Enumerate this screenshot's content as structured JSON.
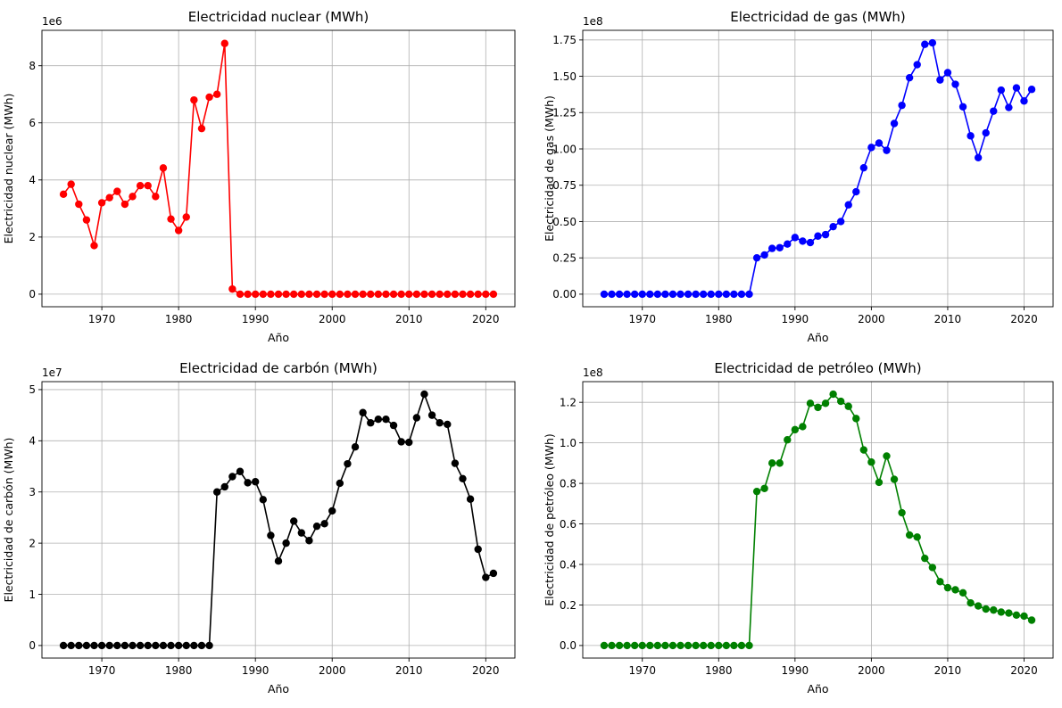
{
  "chart_data": [
    {
      "type": "line",
      "title": "Electricidad nuclear (MWh)",
      "xlabel": "Año",
      "ylabel": "Electricidad nuclear (MWh)",
      "y_offset_text": "1e6",
      "color": "#ff0000",
      "marker": "circle",
      "grid": true,
      "legend": "none",
      "xlim": [
        1962.2,
        2023.8
      ],
      "ylim": [
        -440000,
        9240000
      ],
      "x_ticks": [
        1970,
        1980,
        1990,
        2000,
        2010,
        2020
      ],
      "y_ticks": [
        0,
        2000000,
        4000000,
        6000000,
        8000000
      ],
      "y_tick_labels": [
        "0",
        "2",
        "4",
        "6",
        "8"
      ],
      "x": [
        1965,
        1966,
        1967,
        1968,
        1969,
        1970,
        1971,
        1972,
        1973,
        1974,
        1975,
        1976,
        1977,
        1978,
        1979,
        1980,
        1981,
        1982,
        1983,
        1984,
        1985,
        1986,
        1987,
        1988,
        1989,
        1990,
        1991,
        1992,
        1993,
        1994,
        1995,
        1996,
        1997,
        1998,
        1999,
        2000,
        2001,
        2002,
        2003,
        2004,
        2005,
        2006,
        2007,
        2008,
        2009,
        2010,
        2011,
        2012,
        2013,
        2014,
        2015,
        2016,
        2017,
        2018,
        2019,
        2020,
        2021
      ],
      "values": [
        3500000,
        3850000,
        3150000,
        2600000,
        1700000,
        3200000,
        3380000,
        3600000,
        3150000,
        3420000,
        3800000,
        3800000,
        3420000,
        4420000,
        2630000,
        2230000,
        2700000,
        6800000,
        5800000,
        6900000,
        7000000,
        8780000,
        180000,
        0,
        0,
        0,
        0,
        0,
        0,
        0,
        0,
        0,
        0,
        0,
        0,
        0,
        0,
        0,
        0,
        0,
        0,
        0,
        0,
        0,
        0,
        0,
        0,
        0,
        0,
        0,
        0,
        0,
        0,
        0,
        0,
        0,
        0
      ]
    },
    {
      "type": "line",
      "title": "Electricidad de gas (MWh)",
      "xlabel": "Año",
      "ylabel": "Electricidad de gas (MWh)",
      "y_offset_text": "1e8",
      "color": "#0000ff",
      "marker": "circle",
      "grid": true,
      "legend": "none",
      "xlim": [
        1962.2,
        2023.8
      ],
      "ylim": [
        -8650000,
        181650000
      ],
      "x_ticks": [
        1970,
        1980,
        1990,
        2000,
        2010,
        2020
      ],
      "y_ticks": [
        0,
        25000000,
        50000000,
        75000000,
        100000000,
        125000000,
        150000000,
        175000000
      ],
      "y_tick_labels": [
        "0.00",
        "0.25",
        "0.50",
        "0.75",
        "1.00",
        "1.25",
        "1.50",
        "1.75"
      ],
      "x": [
        1965,
        1966,
        1967,
        1968,
        1969,
        1970,
        1971,
        1972,
        1973,
        1974,
        1975,
        1976,
        1977,
        1978,
        1979,
        1980,
        1981,
        1982,
        1983,
        1984,
        1985,
        1986,
        1987,
        1988,
        1989,
        1990,
        1991,
        1992,
        1993,
        1994,
        1995,
        1996,
        1997,
        1998,
        1999,
        2000,
        2001,
        2002,
        2003,
        2004,
        2005,
        2006,
        2007,
        2008,
        2009,
        2010,
        2011,
        2012,
        2013,
        2014,
        2015,
        2016,
        2017,
        2018,
        2019,
        2020,
        2021
      ],
      "values": [
        0,
        0,
        0,
        0,
        0,
        0,
        0,
        0,
        0,
        0,
        0,
        0,
        0,
        0,
        0,
        0,
        0,
        0,
        0,
        0,
        25000000,
        27000000,
        31500000,
        32000000,
        34500000,
        39000000,
        36500000,
        35500000,
        40000000,
        41000000,
        46500000,
        50000000,
        61500000,
        70500000,
        87000000,
        101000000,
        104000000,
        99000000,
        117500000,
        130000000,
        149000000,
        158000000,
        172000000,
        173000000,
        147500000,
        152500000,
        144500000,
        129000000,
        109000000,
        94000000,
        111000000,
        126000000,
        140500000,
        128500000,
        142000000,
        133000000,
        141000000
      ]
    },
    {
      "type": "line",
      "title": "Electricidad de carbón (MWh)",
      "xlabel": "Año",
      "ylabel": "Electricidad de carbón (MWh)",
      "y_offset_text": "1e7",
      "color": "#000000",
      "marker": "circle",
      "grid": true,
      "legend": "none",
      "xlim": [
        1962.2,
        2023.8
      ],
      "ylim": [
        -2455000,
        51555000
      ],
      "x_ticks": [
        1970,
        1980,
        1990,
        2000,
        2010,
        2020
      ],
      "y_ticks": [
        0,
        10000000,
        20000000,
        30000000,
        40000000,
        50000000
      ],
      "y_tick_labels": [
        "0",
        "1",
        "2",
        "3",
        "4",
        "5"
      ],
      "x": [
        1965,
        1966,
        1967,
        1968,
        1969,
        1970,
        1971,
        1972,
        1973,
        1974,
        1975,
        1976,
        1977,
        1978,
        1979,
        1980,
        1981,
        1982,
        1983,
        1984,
        1985,
        1986,
        1987,
        1988,
        1989,
        1990,
        1991,
        1992,
        1993,
        1994,
        1995,
        1996,
        1997,
        1998,
        1999,
        2000,
        2001,
        2002,
        2003,
        2004,
        2005,
        2006,
        2007,
        2008,
        2009,
        2010,
        2011,
        2012,
        2013,
        2014,
        2015,
        2016,
        2017,
        2018,
        2019,
        2020,
        2021
      ],
      "values": [
        0,
        0,
        0,
        0,
        0,
        0,
        0,
        0,
        0,
        0,
        0,
        0,
        0,
        0,
        0,
        0,
        0,
        0,
        0,
        0,
        30000000,
        31000000,
        33000000,
        34000000,
        31800000,
        32000000,
        28500000,
        21500000,
        16500000,
        20000000,
        24300000,
        22000000,
        20500000,
        23300000,
        23800000,
        26300000,
        31700000,
        35500000,
        38800000,
        45500000,
        43500000,
        44200000,
        44200000,
        43000000,
        39800000,
        39700000,
        44500000,
        49100000,
        45000000,
        43500000,
        43200000,
        35600000,
        32600000,
        28600000,
        18800000,
        13300000,
        14100000
      ]
    },
    {
      "type": "line",
      "title": "Electricidad de petróleo (MWh)",
      "xlabel": "Año",
      "ylabel": "Electricidad de petróleo (MWh)",
      "y_offset_text": "1e8",
      "color": "#008000",
      "marker": "circle",
      "grid": true,
      "legend": "none",
      "xlim": [
        1962.2,
        2023.8
      ],
      "ylim": [
        -6200000,
        130200000
      ],
      "x_ticks": [
        1970,
        1980,
        1990,
        2000,
        2010,
        2020
      ],
      "y_ticks": [
        0,
        20000000,
        40000000,
        60000000,
        80000000,
        100000000,
        120000000
      ],
      "y_tick_labels": [
        "0.0",
        "0.2",
        "0.4",
        "0.6",
        "0.8",
        "1.0",
        "1.2"
      ],
      "x": [
        1965,
        1966,
        1967,
        1968,
        1969,
        1970,
        1971,
        1972,
        1973,
        1974,
        1975,
        1976,
        1977,
        1978,
        1979,
        1980,
        1981,
        1982,
        1983,
        1984,
        1985,
        1986,
        1987,
        1988,
        1989,
        1990,
        1991,
        1992,
        1993,
        1994,
        1995,
        1996,
        1997,
        1998,
        1999,
        2000,
        2001,
        2002,
        2003,
        2004,
        2005,
        2006,
        2007,
        2008,
        2009,
        2010,
        2011,
        2012,
        2013,
        2014,
        2015,
        2016,
        2017,
        2018,
        2019,
        2020,
        2021
      ],
      "values": [
        0,
        0,
        0,
        0,
        0,
        0,
        0,
        0,
        0,
        0,
        0,
        0,
        0,
        0,
        0,
        0,
        0,
        0,
        0,
        0,
        76000000,
        77500000,
        90000000,
        90000000,
        101500000,
        106500000,
        108000000,
        119500000,
        117500000,
        119500000,
        124000000,
        120500000,
        118000000,
        112000000,
        96500000,
        90500000,
        80500000,
        93500000,
        82000000,
        65500000,
        54500000,
        53500000,
        43000000,
        38500000,
        31500000,
        28500000,
        27500000,
        26000000,
        21000000,
        19500000,
        18000000,
        17500000,
        16500000,
        16000000,
        15000000,
        14500000,
        12500000
      ]
    }
  ]
}
